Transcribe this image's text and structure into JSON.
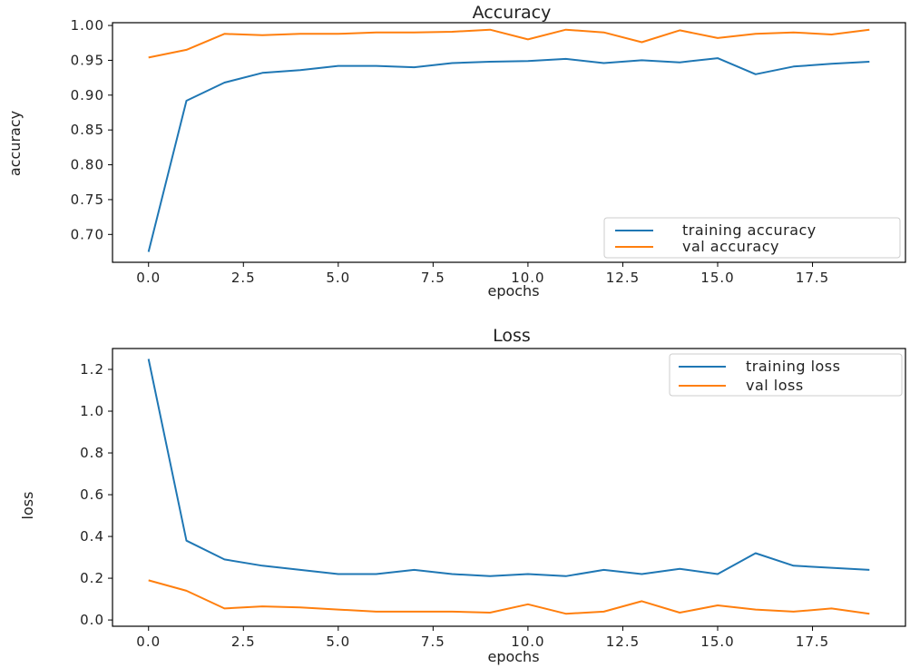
{
  "chart_data": [
    {
      "type": "line",
      "title": "Accuracy",
      "xlabel": "epochs",
      "ylabel": "accuracy",
      "xlim": [
        -0.95,
        19.95
      ],
      "ylim": [
        0.66,
        1.004
      ],
      "xticks": [
        0.0,
        2.5,
        5.0,
        7.5,
        10.0,
        12.5,
        15.0,
        17.5
      ],
      "xtick_labels": [
        "0.0",
        "2.5",
        "5.0",
        "7.5",
        "10.0",
        "12.5",
        "15.0",
        "17.5"
      ],
      "yticks": [
        0.7,
        0.75,
        0.8,
        0.85,
        0.9,
        0.95,
        1.0
      ],
      "ytick_labels": [
        "0.70",
        "0.75",
        "0.80",
        "0.85",
        "0.90",
        "0.95",
        "1.00"
      ],
      "grid": false,
      "legend_position": "lower-right",
      "x": [
        0,
        1,
        2,
        3,
        4,
        5,
        6,
        7,
        8,
        9,
        10,
        11,
        12,
        13,
        14,
        15,
        16,
        17,
        18,
        19
      ],
      "series": [
        {
          "name": "training accuracy",
          "color": "#1f77b4",
          "values": [
            0.675,
            0.892,
            0.918,
            0.932,
            0.936,
            0.942,
            0.942,
            0.94,
            0.946,
            0.948,
            0.949,
            0.952,
            0.946,
            0.95,
            0.947,
            0.953,
            0.93,
            0.941,
            0.945,
            0.948
          ]
        },
        {
          "name": "val accuracy",
          "color": "#ff7f0e",
          "values": [
            0.954,
            0.965,
            0.988,
            0.986,
            0.988,
            0.988,
            0.99,
            0.99,
            0.991,
            0.994,
            0.98,
            0.994,
            0.99,
            0.976,
            0.993,
            0.982,
            0.988,
            0.99,
            0.987,
            0.994
          ]
        }
      ]
    },
    {
      "type": "line",
      "title": "Loss",
      "xlabel": "epochs",
      "ylabel": "loss",
      "xlim": [
        -0.95,
        19.95
      ],
      "ylim": [
        -0.03,
        1.3
      ],
      "xticks": [
        0.0,
        2.5,
        5.0,
        7.5,
        10.0,
        12.5,
        15.0,
        17.5
      ],
      "xtick_labels": [
        "0.0",
        "2.5",
        "5.0",
        "7.5",
        "10.0",
        "12.5",
        "15.0",
        "17.5"
      ],
      "yticks": [
        0.0,
        0.2,
        0.4,
        0.6,
        0.8,
        1.0,
        1.2
      ],
      "ytick_labels": [
        "0.0",
        "0.2",
        "0.4",
        "0.6",
        "0.8",
        "1.0",
        "1.2"
      ],
      "grid": false,
      "legend_position": "upper-right",
      "x": [
        0,
        1,
        2,
        3,
        4,
        5,
        6,
        7,
        8,
        9,
        10,
        11,
        12,
        13,
        14,
        15,
        16,
        17,
        18,
        19
      ],
      "series": [
        {
          "name": "training loss",
          "color": "#1f77b4",
          "values": [
            1.25,
            0.38,
            0.29,
            0.26,
            0.24,
            0.22,
            0.22,
            0.24,
            0.22,
            0.21,
            0.22,
            0.21,
            0.24,
            0.22,
            0.245,
            0.22,
            0.32,
            0.26,
            0.25,
            0.24
          ]
        },
        {
          "name": "val loss",
          "color": "#ff7f0e",
          "values": [
            0.19,
            0.14,
            0.055,
            0.065,
            0.06,
            0.05,
            0.04,
            0.04,
            0.04,
            0.035,
            0.075,
            0.03,
            0.04,
            0.09,
            0.035,
            0.07,
            0.05,
            0.04,
            0.055,
            0.03
          ]
        }
      ]
    }
  ]
}
